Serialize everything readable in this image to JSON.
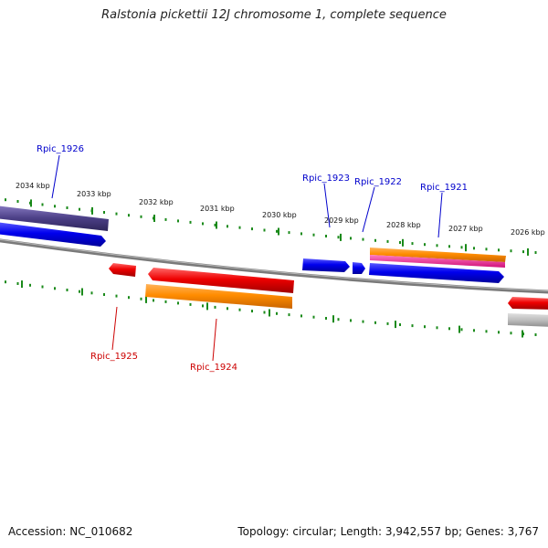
{
  "title": "Ralstonia pickettii 12J chromosome 1, complete sequence",
  "footer": {
    "accession": "Accession: NC_010682",
    "summary": "Topology: circular; Length: 3,942,557 bp; Genes: 3,767"
  },
  "scale_labels": [
    "2034 kbp",
    "2033 kbp",
    "2032 kbp",
    "2031 kbp",
    "2030 kbp",
    "2029 kbp",
    "2028 kbp",
    "2027 kbp",
    "2026 kbp"
  ],
  "gene_labels": {
    "rpic_1926": "Rpic_1926",
    "rpic_1925": "Rpic_1925",
    "rpic_1924": "Rpic_1924",
    "rpic_1923": "Rpic_1923",
    "rpic_1922": "Rpic_1922",
    "rpic_1921": "Rpic_1921"
  },
  "colors": {
    "forward_gene": "#0000ee",
    "reverse_gene": "#ee0000",
    "gene_feature": "#ff8c00",
    "feature_dark": "#4b3f86",
    "feature_pink": "#ff1493",
    "feature_grey": "#bdbdbd",
    "backbone": "#7a7a7a",
    "tick": "#1a8a1a"
  }
}
